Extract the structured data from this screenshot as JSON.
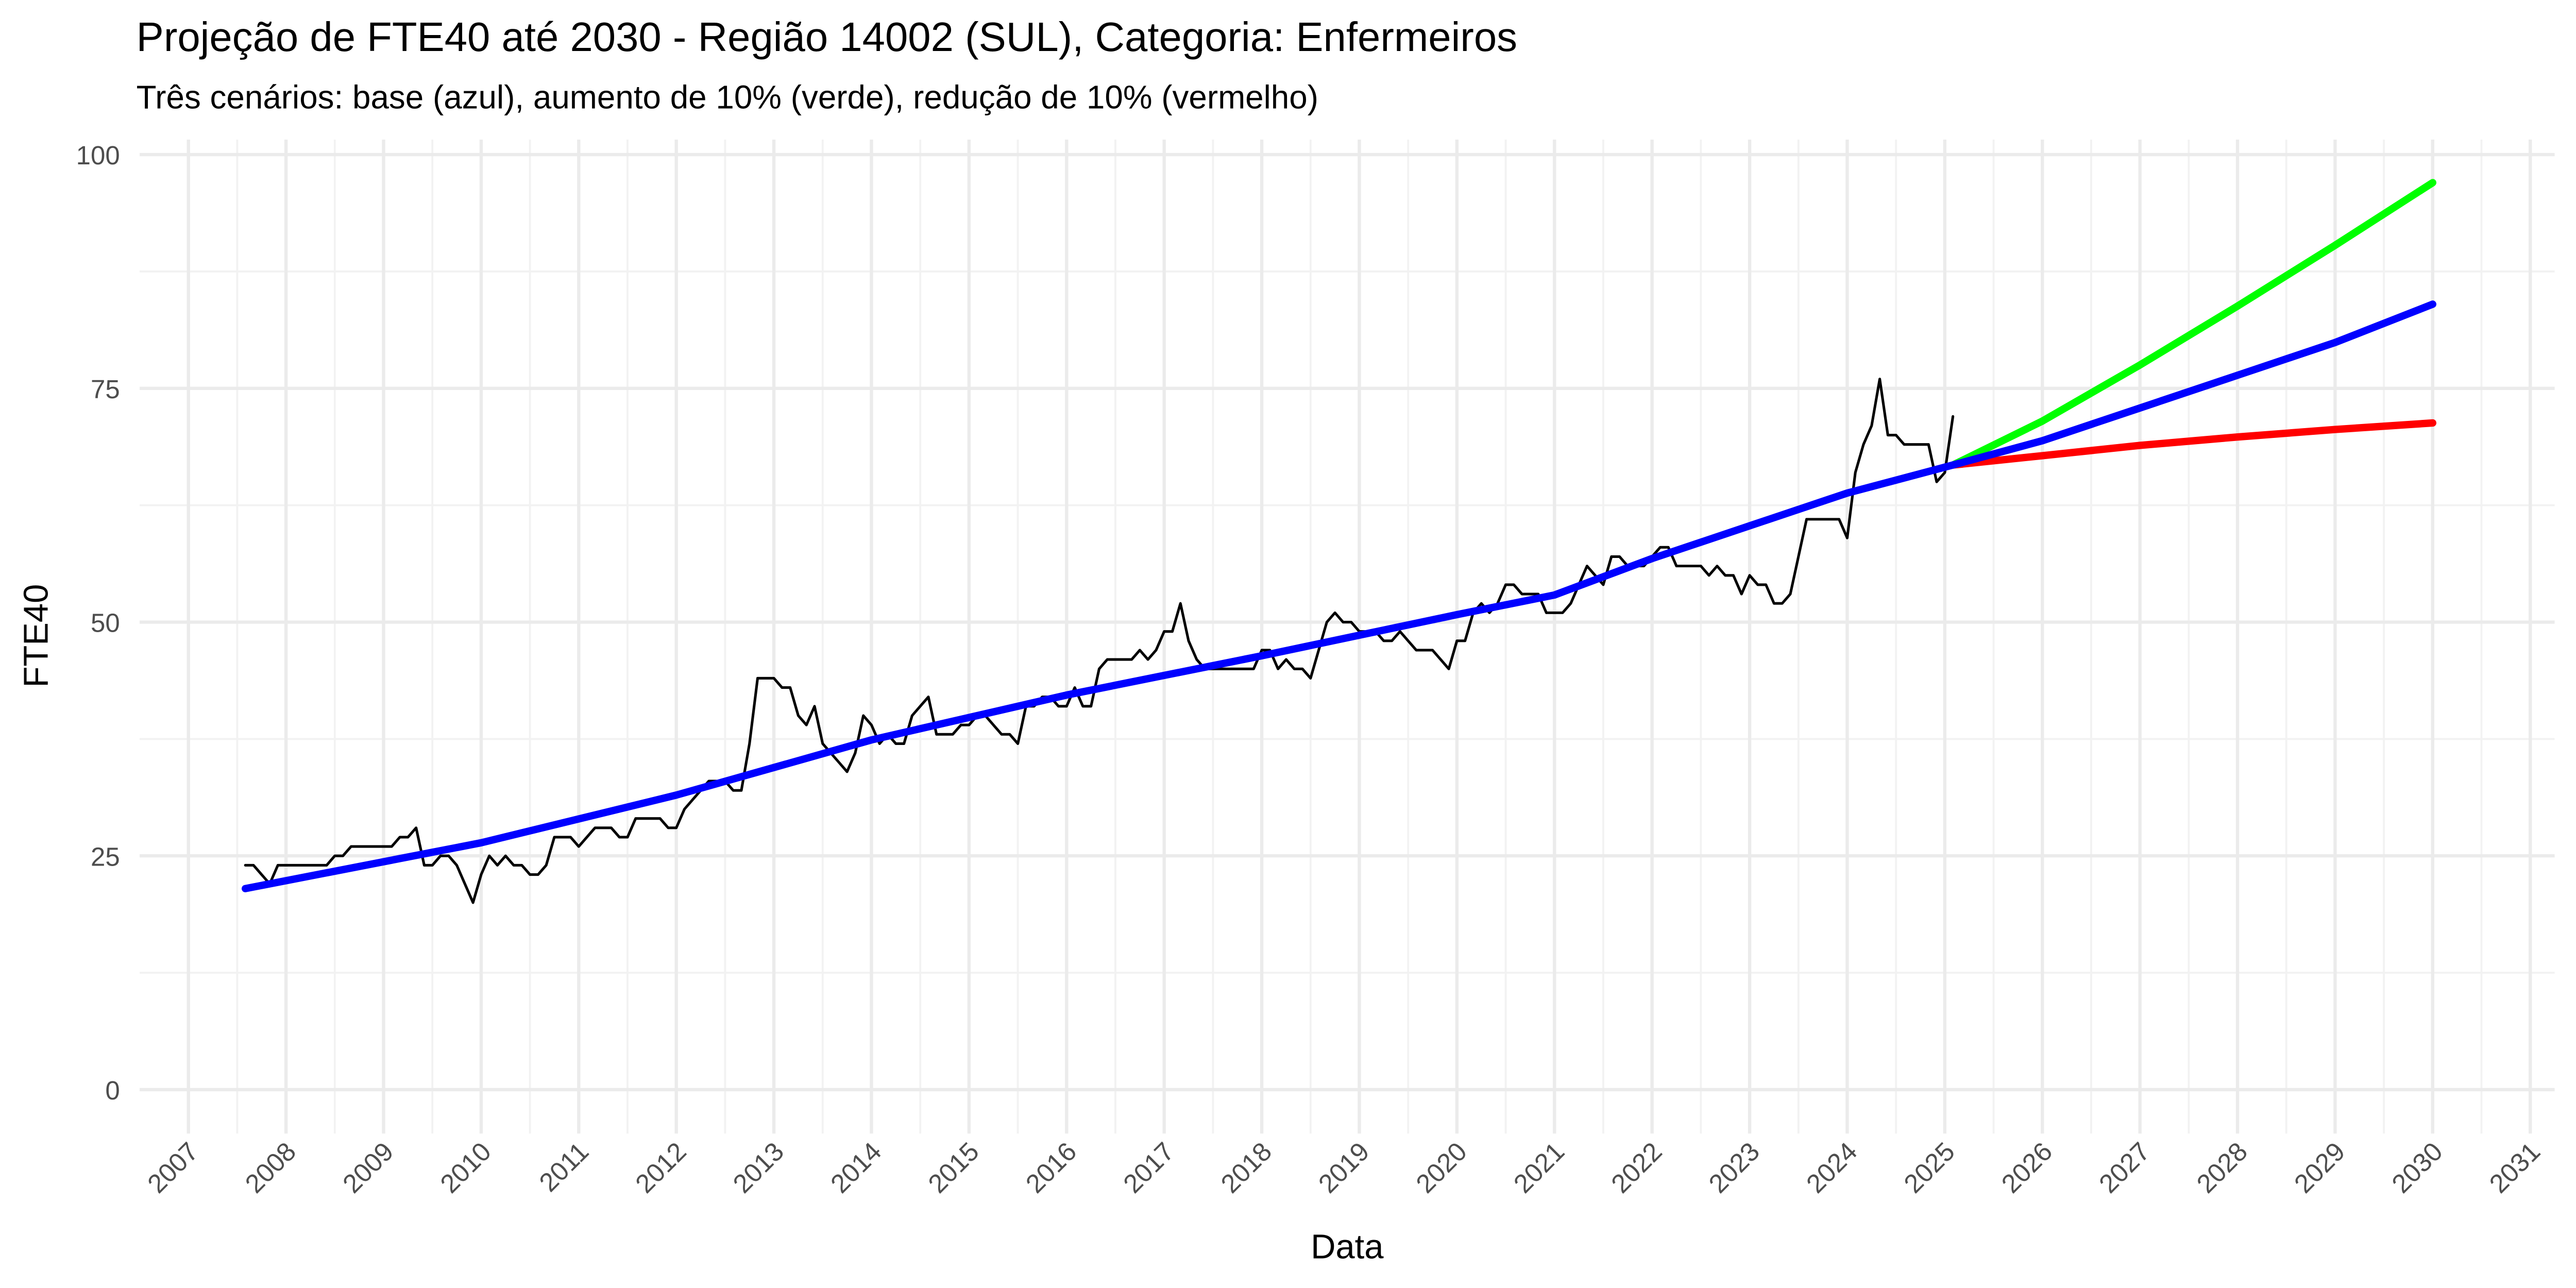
{
  "chart_data": {
    "type": "line",
    "title": "Projeção de FTE40 até 2030 - Região 14002 (SUL), Categoria: Enfermeiros",
    "subtitle": "Três cenários: base (azul), aumento de 10% (verde), redução de 10% (vermelho)",
    "x_label": "Data",
    "y_label": "FTE40",
    "xlim": [
      "2006-07",
      "2031-04"
    ],
    "xticks": [
      "2007",
      "2008",
      "2009",
      "2010",
      "2011",
      "2012",
      "2013",
      "2014",
      "2015",
      "2016",
      "2017",
      "2018",
      "2019",
      "2020",
      "2021",
      "2022",
      "2023",
      "2024",
      "2025",
      "2026",
      "2027",
      "2028",
      "2029",
      "2030",
      "2031"
    ],
    "ylim": [
      -4.7,
      101.6
    ],
    "yticks": [
      0,
      25,
      50,
      75,
      100
    ],
    "grid": true,
    "series": [
      {
        "color": "#000000",
        "linewidth": 1.6,
        "x": [
          "2007-08",
          "2007-09",
          "2007-10",
          "2007-11",
          "2007-12",
          "2008-01",
          "2008-02",
          "2008-03",
          "2008-04",
          "2008-05",
          "2008-06",
          "2008-07",
          "2008-08",
          "2008-09",
          "2008-10",
          "2008-11",
          "2008-12",
          "2009-01",
          "2009-02",
          "2009-03",
          "2009-04",
          "2009-05",
          "2009-06",
          "2009-07",
          "2009-08",
          "2009-09",
          "2009-10",
          "2009-11",
          "2009-12",
          "2010-01",
          "2010-02",
          "2010-03",
          "2010-04",
          "2010-05",
          "2010-06",
          "2010-07",
          "2010-08",
          "2010-09",
          "2010-10",
          "2010-11",
          "2010-12",
          "2011-01",
          "2011-02",
          "2011-03",
          "2011-04",
          "2011-05",
          "2011-06",
          "2011-07",
          "2011-08",
          "2011-09",
          "2011-10",
          "2011-11",
          "2011-12",
          "2012-01",
          "2012-02",
          "2012-03",
          "2012-04",
          "2012-05",
          "2012-06",
          "2012-07",
          "2012-08",
          "2012-09",
          "2012-10",
          "2012-11",
          "2012-12",
          "2013-01",
          "2013-02",
          "2013-03",
          "2013-04",
          "2013-05",
          "2013-06",
          "2013-07",
          "2013-08",
          "2013-09",
          "2013-10",
          "2013-11",
          "2013-12",
          "2014-01",
          "2014-02",
          "2014-03",
          "2014-04",
          "2014-05",
          "2014-06",
          "2014-07",
          "2014-08",
          "2014-09",
          "2014-10",
          "2014-11",
          "2014-12",
          "2015-01",
          "2015-02",
          "2015-03",
          "2015-04",
          "2015-05",
          "2015-06",
          "2015-07",
          "2015-08",
          "2015-09",
          "2015-10",
          "2015-11",
          "2015-12",
          "2016-01",
          "2016-02",
          "2016-03",
          "2016-04",
          "2016-05",
          "2016-06",
          "2016-07",
          "2016-08",
          "2016-09",
          "2016-10",
          "2016-11",
          "2016-12",
          "2017-01",
          "2017-02",
          "2017-03",
          "2017-04",
          "2017-05",
          "2017-06",
          "2017-07",
          "2017-08",
          "2017-09",
          "2017-10",
          "2017-11",
          "2017-12",
          "2018-01",
          "2018-02",
          "2018-03",
          "2018-04",
          "2018-05",
          "2018-06",
          "2018-07",
          "2018-08",
          "2018-09",
          "2018-10",
          "2018-11",
          "2018-12",
          "2019-01",
          "2019-02",
          "2019-03",
          "2019-04",
          "2019-05",
          "2019-06",
          "2019-07",
          "2019-08",
          "2019-09",
          "2019-10",
          "2019-11",
          "2019-12",
          "2020-01",
          "2020-02",
          "2020-03",
          "2020-04",
          "2020-05",
          "2020-06",
          "2020-07",
          "2020-08",
          "2020-09",
          "2020-10",
          "2020-11",
          "2020-12",
          "2021-01",
          "2021-02",
          "2021-03",
          "2021-04",
          "2021-05",
          "2021-06",
          "2021-07",
          "2021-08",
          "2021-09",
          "2021-10",
          "2021-11",
          "2021-12",
          "2022-01",
          "2022-02",
          "2022-03",
          "2022-04",
          "2022-05",
          "2022-06",
          "2022-07",
          "2022-08",
          "2022-09",
          "2022-10",
          "2022-11",
          "2022-12",
          "2023-01",
          "2023-02",
          "2023-03",
          "2023-04",
          "2023-05",
          "2023-06",
          "2023-07",
          "2023-08",
          "2023-09",
          "2023-10",
          "2023-11",
          "2023-12",
          "2024-01",
          "2024-02",
          "2024-03",
          "2024-04",
          "2024-05",
          "2024-06",
          "2024-07",
          "2024-08",
          "2024-09",
          "2024-10",
          "2024-11",
          "2024-12",
          "2025-01",
          "2025-02"
        ],
        "values": [
          24,
          24,
          23,
          22,
          24,
          24,
          24,
          24,
          24,
          24,
          24,
          25,
          25,
          26,
          26,
          26,
          26,
          26,
          26,
          27,
          27,
          28,
          24,
          24,
          25,
          25,
          24,
          22,
          20,
          23,
          25,
          24,
          25,
          24,
          24,
          23,
          23,
          24,
          27,
          27,
          27,
          26,
          27,
          28,
          28,
          28,
          27,
          27,
          29,
          29,
          29,
          29,
          28,
          28,
          30,
          31,
          32,
          33,
          33,
          33,
          32,
          32,
          37,
          44,
          44,
          44,
          43,
          43,
          40,
          39,
          41,
          37,
          36,
          35,
          34,
          36,
          40,
          39,
          37,
          38,
          37,
          37,
          40,
          41,
          42,
          38,
          38,
          38,
          39,
          39,
          40,
          40,
          39,
          38,
          38,
          37,
          41,
          41,
          42,
          42,
          41,
          41,
          43,
          41,
          41,
          45,
          46,
          46,
          46,
          46,
          47,
          46,
          47,
          49,
          49,
          52,
          48,
          46,
          45,
          45,
          45,
          45,
          45,
          45,
          45,
          47,
          47,
          45,
          46,
          45,
          45,
          44,
          47,
          50,
          51,
          50,
          50,
          49,
          49,
          49,
          48,
          48,
          49,
          48,
          47,
          47,
          47,
          46,
          45,
          48,
          48,
          51,
          52,
          51,
          52,
          54,
          54,
          53,
          53,
          53,
          51,
          51,
          51,
          52,
          54,
          56,
          55,
          54,
          57,
          57,
          56,
          56,
          56,
          57,
          58,
          58,
          56,
          56,
          56,
          56,
          55,
          56,
          55,
          55,
          53,
          55,
          54,
          54,
          52,
          52,
          53,
          57,
          61,
          61,
          61,
          61,
          61,
          59,
          66,
          69,
          71,
          76,
          70,
          70,
          69,
          69,
          69,
          69,
          65,
          66,
          72
        ]
      },
      {
        "color": "#00ff00",
        "linewidth": 4.5,
        "x": [
          "2025-02",
          "2026-01",
          "2027-01",
          "2028-01",
          "2029-01",
          "2030-01"
        ],
        "values": [
          66.8,
          71.5,
          77.5,
          83.8,
          90.3,
          97
        ]
      },
      {
        "color": "#ff0000",
        "linewidth": 4.5,
        "x": [
          "2025-02",
          "2026-01",
          "2027-01",
          "2028-01",
          "2029-01",
          "2030-01"
        ],
        "values": [
          66.8,
          67.8,
          68.9,
          69.8,
          70.6,
          71.3
        ]
      },
      {
        "color": "#0000ff",
        "linewidth": 4.5,
        "x": [
          "2007-08",
          "2010-01",
          "2012-01",
          "2014-01",
          "2016-01",
          "2018-01",
          "2020-01",
          "2021-01",
          "2022-01",
          "2023-01",
          "2024-01",
          "2025-02",
          "2026-01",
          "2027-01",
          "2028-01",
          "2029-01",
          "2030-01"
        ],
        "values": [
          21.5,
          26.4,
          31.5,
          37.4,
          42.2,
          46.4,
          50.8,
          52.9,
          56.8,
          60.3,
          63.8,
          66.8,
          69.4,
          72.9,
          76.4,
          79.9,
          84
        ]
      }
    ]
  }
}
